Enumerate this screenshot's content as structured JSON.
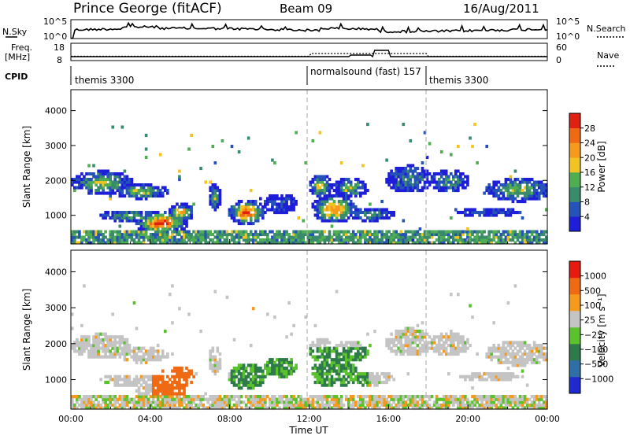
{
  "header": {
    "station": "Prince George (fitACF)",
    "beam": "Beam 09",
    "date": "16/Aug/2011"
  },
  "top_panels": {
    "nsky": {
      "label": "N.Sky",
      "ticks": [
        "10^5",
        "10^0"
      ],
      "right_label": "N.Search",
      "right_ticks": [
        "10^5",
        "10^0"
      ]
    },
    "freq": {
      "label_line1": "Freq.",
      "label_line2": "[MHz]",
      "ticks": [
        "18",
        "8"
      ],
      "right_label": "Nave",
      "right_ticks": [
        "60",
        "0"
      ]
    },
    "cpid": {
      "label": "CPID",
      "segments": [
        {
          "name": "themis 3300",
          "start_hour": 0.0
        },
        {
          "name": "normalsound (fast) 157",
          "start_hour": 12.0
        },
        {
          "name": "themis 3300",
          "start_hour": 18.0
        }
      ]
    }
  },
  "chart_data": [
    {
      "type": "heatmap",
      "name": "Power",
      "ylabel": "Slant Range [km]",
      "xlim_hours": [
        0,
        24
      ],
      "ylim": [
        180,
        4600
      ],
      "yticks": [
        "4000",
        "3000",
        "2000",
        "1000"
      ],
      "colorbar_label": "Power [dB]",
      "colorbar_ticks": [
        "28",
        "24",
        "20",
        "16",
        "12",
        "8",
        "4"
      ],
      "colors": [
        "#1e1ed8",
        "#2553b8",
        "#3a8a6c",
        "#4fae52",
        "#f2c423",
        "#f59a1d",
        "#f06a14",
        "#e02010"
      ],
      "vgrid_hours": [
        12,
        18
      ]
    },
    {
      "type": "heatmap",
      "name": "Velocity",
      "ylabel": "Slant Range [km]",
      "xlabel": "Time UT",
      "xlim_hours": [
        0,
        24
      ],
      "ylim": [
        180,
        4600
      ],
      "yticks": [
        "4000",
        "3000",
        "2000",
        "1000"
      ],
      "xticks": [
        "00:00",
        "04:00",
        "08:00",
        "12:00",
        "16:00",
        "20:00",
        "00:00"
      ],
      "colorbar_label": "Velocity [m s⁻¹]",
      "colorbar_ticks": [
        "1000",
        "500",
        "100",
        "25",
        "−25",
        "−100",
        "−500",
        "−1000"
      ],
      "colors": [
        "#1e2ad0",
        "#2f6fa8",
        "#2f7a4a",
        "#5ac22c",
        "#c4c4c4",
        "#f59a1d",
        "#f06a14",
        "#e81a10"
      ],
      "vgrid_hours": [
        12,
        18
      ]
    }
  ]
}
